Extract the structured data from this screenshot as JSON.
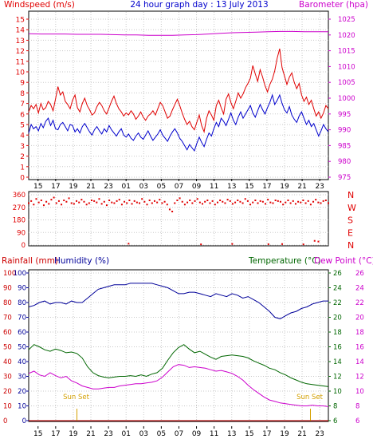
{
  "header": {
    "left_label": "Windspeed (m/s)",
    "center_title": "24 hour graph day : 13 July 2013",
    "right_label": "Barometer (hpa)"
  },
  "colors": {
    "gust": "#e00000",
    "wind": "#0000cc",
    "barometer": "#cc00cc",
    "direction": "#e00000",
    "humidity": "#000099",
    "temperature": "#006600",
    "dewpoint": "#cc00cc",
    "rain_axis": "#cc0000",
    "humidity_axis": "#000099",
    "temp_axis": "#006600",
    "dew_axis": "#cc00cc",
    "sunset": "#d4a000",
    "frame": "#000000"
  },
  "time_labels": [
    "15",
    "17",
    "19",
    "21",
    "23",
    "01",
    "03",
    "05",
    "07",
    "09",
    "11",
    "13",
    "15",
    "17",
    "19",
    "21",
    "23"
  ],
  "chart_data": [
    {
      "id": "wind",
      "type": "line",
      "left_axis": {
        "title": "Windspeed (m/s)",
        "ylim": [
          0,
          15
        ],
        "ticks": [
          "0",
          "1",
          "2",
          "3",
          "4",
          "5",
          "6",
          "7",
          "8",
          "9",
          "10",
          "11",
          "12",
          "13",
          "14",
          "15"
        ]
      },
      "right_axis": {
        "title": "Barometer (hpa)",
        "ylim": [
          975,
          1025
        ],
        "ticks": [
          "975",
          "980",
          "985",
          "990",
          "995",
          "1000",
          "1005",
          "1010",
          "1015",
          "1020",
          "1025"
        ]
      },
      "hours": 24,
      "series": [
        {
          "key": "gust",
          "values": [
            6.2,
            6.8,
            6.5,
            6.9,
            6.1,
            7.0,
            6.4,
            6.6,
            7.2,
            6.9,
            6.3,
            7.4,
            8.6,
            7.8,
            8.1,
            7.2,
            6.9,
            6.5,
            7.3,
            7.8,
            6.6,
            6.2,
            7.0,
            7.5,
            6.8,
            6.4,
            5.9,
            6.1,
            6.7,
            7.1,
            6.8,
            6.3,
            6.0,
            6.6,
            7.2,
            7.7,
            7.0,
            6.5,
            6.2,
            5.8,
            6.1,
            5.9,
            6.3,
            6.0,
            5.5,
            5.8,
            6.2,
            5.7,
            5.4,
            5.8,
            6.0,
            6.3,
            5.9,
            6.5,
            7.1,
            6.8,
            6.2,
            5.6,
            5.8,
            6.4,
            6.9,
            7.4,
            6.8,
            6.1,
            5.5,
            5.0,
            5.3,
            4.8,
            4.5,
            5.2,
            5.9,
            4.9,
            4.3,
            5.6,
            6.3,
            5.9,
            5.4,
            6.8,
            7.3,
            6.6,
            6.0,
            7.4,
            7.9,
            7.1,
            6.5,
            7.2,
            8.0,
            7.5,
            7.9,
            8.5,
            8.9,
            9.4,
            10.6,
            9.8,
            9.1,
            10.2,
            9.5,
            8.7,
            8.1,
            8.8,
            9.3,
            10.1,
            11.3,
            12.2,
            10.4,
            9.6,
            8.8,
            9.5,
            9.9,
            9.0,
            8.4,
            8.9,
            7.8,
            7.2,
            7.6,
            6.9,
            7.3,
            6.5,
            5.8,
            6.2,
            5.6,
            6.1,
            6.8,
            6.5
          ],
          "note": ""
        },
        {
          "key": "wind",
          "values": [
            4.2,
            5.0,
            4.6,
            4.8,
            4.4,
            5.1,
            4.7,
            5.3,
            5.6,
            4.9,
            5.4,
            4.6,
            4.5,
            5.0,
            5.2,
            4.8,
            4.4,
            5.0,
            4.9,
            4.3,
            4.6,
            4.2,
            4.8,
            5.1,
            4.7,
            4.3,
            4.0,
            4.5,
            4.8,
            4.4,
            4.1,
            4.6,
            4.3,
            4.9,
            4.5,
            4.2,
            3.9,
            4.3,
            4.6,
            4.0,
            3.8,
            4.1,
            3.7,
            3.5,
            3.9,
            4.2,
            3.8,
            3.6,
            4.0,
            4.4,
            3.9,
            3.5,
            3.8,
            4.1,
            4.5,
            4.0,
            3.7,
            3.4,
            3.9,
            4.3,
            4.6,
            4.2,
            3.7,
            3.4,
            3.0,
            2.6,
            3.1,
            2.8,
            2.5,
            3.2,
            3.8,
            3.3,
            2.9,
            3.6,
            4.2,
            3.9,
            4.6,
            5.2,
            4.8,
            5.6,
            5.3,
            4.9,
            5.5,
            6.1,
            5.4,
            5.0,
            5.7,
            6.2,
            5.6,
            6.0,
            6.4,
            6.8,
            6.1,
            5.7,
            6.3,
            6.9,
            6.4,
            6.0,
            6.6,
            7.1,
            7.8,
            6.9,
            7.3,
            7.8,
            7.0,
            6.4,
            6.1,
            6.7,
            5.9,
            5.5,
            5.2,
            5.8,
            6.2,
            5.6,
            5.0,
            5.4,
            4.8,
            5.1,
            4.5,
            3.9,
            4.4,
            5.0,
            4.6,
            4.3
          ],
          "note": ""
        },
        {
          "key": "barometer",
          "axis": "right",
          "values": [
            1020.4,
            1020.3,
            1020.3,
            1020.3,
            1020.2,
            1020.2,
            1020.2,
            1020.1,
            1020.0,
            1020.0,
            1019.9,
            1019.9,
            1019.9,
            1020.0,
            1020.1,
            1020.3,
            1020.5,
            1020.7,
            1020.8,
            1020.9,
            1021.0,
            1021.1,
            1021.1,
            1021.0,
            1021.0,
            1021.0
          ],
          "note": ""
        }
      ]
    },
    {
      "id": "direction",
      "type": "scatter",
      "left_axis": {
        "title": "",
        "ylim": [
          0,
          360
        ],
        "ticks": [
          "0",
          "90",
          "180",
          "270",
          "360"
        ]
      },
      "right_axis": {
        "title": "",
        "ticks": [
          "N",
          "E",
          "S",
          "W",
          "N"
        ]
      },
      "hours": 24,
      "series": [
        {
          "key": "direction",
          "values": [
            300,
            315,
            290,
            330,
            305,
            320,
            285,
            310,
            295,
            325,
            340,
            300,
            315,
            290,
            320,
            310,
            335,
            300,
            295,
            315,
            305,
            325,
            310,
            290,
            300,
            320,
            315,
            305,
            330,
            295,
            310,
            285,
            320,
            305,
            300,
            315,
            325,
            290,
            310,
            300,
            320,
            295,
            315,
            305,
            300,
            330,
            310,
            290,
            320,
            300,
            315,
            305,
            325,
            300,
            310,
            290,
            255,
            240,
            300,
            320,
            335,
            310,
            290,
            305,
            320,
            300,
            315,
            330,
            305,
            295,
            310,
            320,
            300,
            315,
            290,
            305,
            320,
            310,
            300,
            325,
            315,
            295,
            305,
            320,
            310,
            300,
            330,
            315,
            290,
            305,
            320,
            300,
            315,
            310,
            295,
            325,
            305,
            300,
            320,
            315,
            310,
            290,
            305,
            320,
            300,
            315,
            295,
            310,
            305,
            320,
            300,
            315,
            290,
            310,
            325,
            305,
            300,
            315,
            320,
            300
          ],
          "note": ""
        },
        {
          "key": "direction-low",
          "points": [
            [
              8.0,
              10
            ],
            [
              13.8,
              5
            ],
            [
              16.3,
              8
            ],
            [
              19.2,
              6
            ],
            [
              20.3,
              7
            ],
            [
              22.0,
              5
            ],
            [
              22.9,
              30
            ],
            [
              23.2,
              25
            ]
          ],
          "note": ""
        }
      ]
    },
    {
      "id": "climate",
      "type": "line",
      "left_axis_rain": {
        "title": "Rainfall (mm)",
        "ylim": [
          0,
          100
        ],
        "ticks": [
          "0",
          "10",
          "20",
          "30",
          "40",
          "50",
          "60",
          "70",
          "80",
          "90",
          "100"
        ]
      },
      "left_axis_humidity": {
        "title": "Humidity (%)",
        "ylim": [
          0,
          100
        ],
        "ticks": [
          "0",
          "10",
          "20",
          "30",
          "40",
          "50",
          "60",
          "70",
          "80",
          "90",
          "100"
        ]
      },
      "right_axis_temp": {
        "title": "Temperature (°C)",
        "ylim": [
          6,
          26
        ],
        "ticks": [
          "6",
          "8",
          "10",
          "12",
          "14",
          "16",
          "18",
          "20",
          "22",
          "24",
          "26"
        ]
      },
      "right_axis_dew": {
        "title": "Dew Point (°C)",
        "ylim": [
          6,
          26
        ],
        "ticks": [
          "6",
          "8",
          "10",
          "12",
          "14",
          "16",
          "18",
          "20",
          "22",
          "24",
          "26"
        ]
      },
      "hours": 24,
      "annotations": [
        {
          "text": "Sun Set",
          "hour": 3.8
        },
        {
          "text": "Sun Set",
          "hour": 22.5
        }
      ],
      "series": [
        {
          "key": "humidity",
          "values": [
            77,
            78,
            80,
            81,
            79,
            80,
            80,
            79,
            81,
            80,
            80,
            83,
            86,
            89,
            90,
            91,
            92,
            92,
            92,
            93,
            93,
            93,
            93,
            93,
            92,
            91,
            90,
            88,
            86,
            86,
            87,
            87,
            86,
            85,
            84,
            86,
            85,
            84,
            86,
            85,
            83,
            84,
            82,
            80,
            77,
            74,
            70,
            69,
            71,
            73,
            74,
            76,
            77,
            79,
            80,
            81,
            81
          ],
          "note": ""
        },
        {
          "key": "temperature",
          "values": [
            15.6,
            16.3,
            16.0,
            15.6,
            15.4,
            15.7,
            15.5,
            15.2,
            15.3,
            15.1,
            14.5,
            13.3,
            12.5,
            12.1,
            11.9,
            11.8,
            11.9,
            12.0,
            12.0,
            12.1,
            12.0,
            12.2,
            12.0,
            12.3,
            12.5,
            13.1,
            14.2,
            15.2,
            15.9,
            16.3,
            15.7,
            15.2,
            15.4,
            15.0,
            14.6,
            14.3,
            14.7,
            14.8,
            14.9,
            14.8,
            14.7,
            14.5,
            14.1,
            13.8,
            13.5,
            13.1,
            12.9,
            12.5,
            12.2,
            11.8,
            11.5,
            11.2,
            11.0,
            10.9,
            10.8,
            10.7,
            10.6
          ],
          "note": ""
        },
        {
          "key": "dewpoint",
          "values": [
            12.4,
            12.7,
            12.2,
            12.0,
            12.5,
            12.1,
            11.8,
            12.0,
            11.4,
            11.1,
            10.7,
            10.5,
            10.3,
            10.3,
            10.4,
            10.5,
            10.5,
            10.7,
            10.8,
            10.9,
            11.0,
            11.0,
            11.1,
            11.2,
            11.4,
            11.9,
            12.6,
            13.3,
            13.6,
            13.5,
            13.2,
            13.3,
            13.2,
            13.1,
            12.9,
            12.7,
            12.8,
            12.6,
            12.4,
            12.0,
            11.5,
            10.8,
            10.2,
            9.7,
            9.2,
            8.8,
            8.6,
            8.4,
            8.3,
            8.2,
            8.1,
            8.0,
            8.0,
            8.1,
            8.0,
            8.0,
            7.9
          ],
          "note": ""
        },
        {
          "key": "rain",
          "values": [
            0,
            0,
            0,
            0,
            0,
            0,
            0,
            0,
            0,
            0,
            0,
            0,
            0,
            0,
            0,
            0,
            0,
            0,
            0,
            0,
            0,
            0,
            0,
            0,
            0,
            0
          ],
          "note": ""
        }
      ]
    }
  ]
}
